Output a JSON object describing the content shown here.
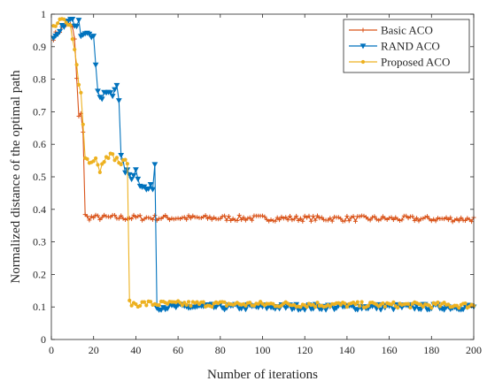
{
  "chart_data": {
    "type": "line",
    "xlabel": "Number of iterations",
    "ylabel": "Normalized distance of the optimal path",
    "xlim": [
      0,
      200
    ],
    "ylim": [
      0,
      1
    ],
    "x_ticks": [
      0,
      20,
      40,
      60,
      80,
      100,
      120,
      140,
      160,
      180,
      200
    ],
    "y_ticks": [
      0,
      0.1,
      0.2,
      0.3,
      0.4,
      0.5,
      0.6,
      0.7,
      0.8,
      0.9,
      1
    ],
    "y_tick_labels": [
      "0",
      "0.1",
      "0.2",
      "0.3",
      "0.4",
      "0.5",
      "0.6",
      "0.7",
      "0.8",
      "0.9",
      "1"
    ],
    "x_tick_labels": [
      "0",
      "20",
      "40",
      "60",
      "80",
      "100",
      "120",
      "140",
      "160",
      "180",
      "200"
    ],
    "grid": false,
    "legend_position": "top-right",
    "series": [
      {
        "name": "Basic ACO",
        "color": "#D95319",
        "marker": "plus",
        "breakpoints": [
          [
            1,
            0.93
          ],
          [
            4,
            0.95
          ],
          [
            7,
            0.97
          ],
          [
            10,
            0.96
          ],
          [
            11,
            0.92
          ],
          [
            12,
            0.8
          ],
          [
            13,
            0.68
          ],
          [
            14,
            0.7
          ],
          [
            15,
            0.64
          ],
          [
            16,
            0.38
          ],
          [
            17,
            0.375
          ],
          [
            200,
            0.37
          ]
        ],
        "plateau": 0.373
      },
      {
        "name": "RAND ACO",
        "color": "#0072BD",
        "marker": "triangle-down",
        "breakpoints": [
          [
            1,
            0.92
          ],
          [
            3,
            0.93
          ],
          [
            6,
            0.97
          ],
          [
            9,
            0.98
          ],
          [
            12,
            0.97
          ],
          [
            13,
            0.99
          ],
          [
            14,
            0.94
          ],
          [
            16,
            0.95
          ],
          [
            18,
            0.93
          ],
          [
            20,
            0.94
          ],
          [
            21,
            0.85
          ],
          [
            22,
            0.76
          ],
          [
            24,
            0.74
          ],
          [
            26,
            0.76
          ],
          [
            29,
            0.75
          ],
          [
            31,
            0.79
          ],
          [
            32,
            0.74
          ],
          [
            33,
            0.56
          ],
          [
            35,
            0.52
          ],
          [
            38,
            0.5
          ],
          [
            40,
            0.52
          ],
          [
            42,
            0.48
          ],
          [
            45,
            0.46
          ],
          [
            48,
            0.47
          ],
          [
            49,
            0.54
          ],
          [
            50,
            0.1
          ],
          [
            200,
            0.1
          ]
        ],
        "plateau": 0.1
      },
      {
        "name": "Proposed ACO",
        "color": "#EDB120",
        "marker": "dot",
        "breakpoints": [
          [
            1,
            0.96
          ],
          [
            3,
            0.97
          ],
          [
            5,
            0.98
          ],
          [
            7,
            0.97
          ],
          [
            9,
            0.96
          ],
          [
            11,
            0.9
          ],
          [
            12,
            0.84
          ],
          [
            13,
            0.78
          ],
          [
            14,
            0.76
          ],
          [
            15,
            0.66
          ],
          [
            16,
            0.56
          ],
          [
            18,
            0.55
          ],
          [
            21,
            0.56
          ],
          [
            23,
            0.52
          ],
          [
            26,
            0.57
          ],
          [
            30,
            0.56
          ],
          [
            33,
            0.54
          ],
          [
            36,
            0.55
          ],
          [
            37,
            0.11
          ],
          [
            40,
            0.11
          ],
          [
            50,
            0.11
          ],
          [
            200,
            0.105
          ]
        ],
        "plateau": 0.107
      }
    ]
  }
}
